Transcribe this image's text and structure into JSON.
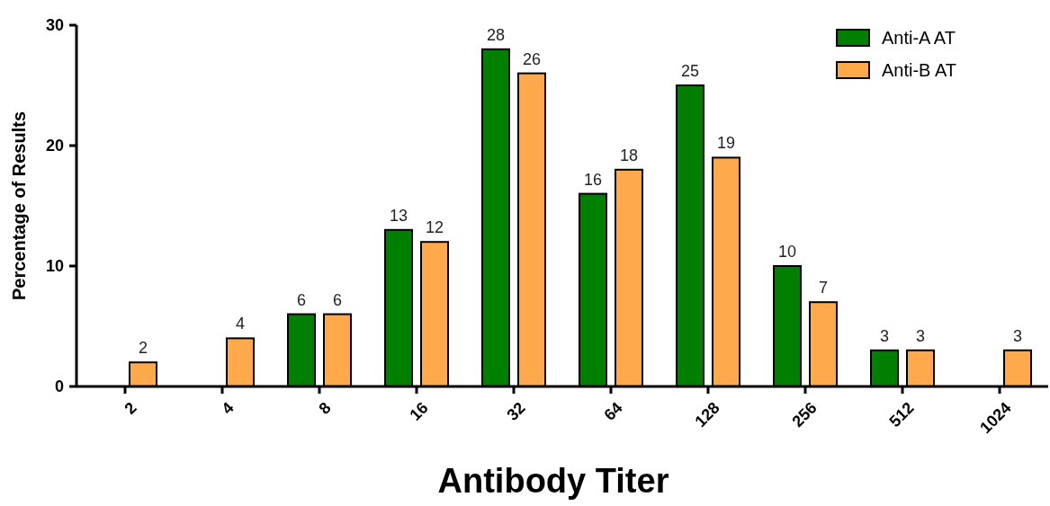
{
  "chart_data": {
    "type": "bar",
    "xlabel": "Antibody Titer",
    "ylabel": "Percentage of Results",
    "categories": [
      "2",
      "4",
      "8",
      "16",
      "32",
      "64",
      "128",
      "256",
      "512",
      "1024"
    ],
    "series": [
      {
        "name": "Anti-A AT",
        "color": "#007f00",
        "values": [
          null,
          null,
          6,
          13,
          28,
          16,
          25,
          10,
          3,
          null
        ]
      },
      {
        "name": "Anti-B AT",
        "color": "#ffa94d",
        "values": [
          2,
          4,
          6,
          12,
          26,
          18,
          19,
          7,
          3,
          3
        ]
      }
    ],
    "ylim": [
      0,
      30
    ],
    "yticks": [
      0,
      10,
      20,
      30
    ],
    "data_labels": true,
    "legend": "top right",
    "grid": false
  }
}
